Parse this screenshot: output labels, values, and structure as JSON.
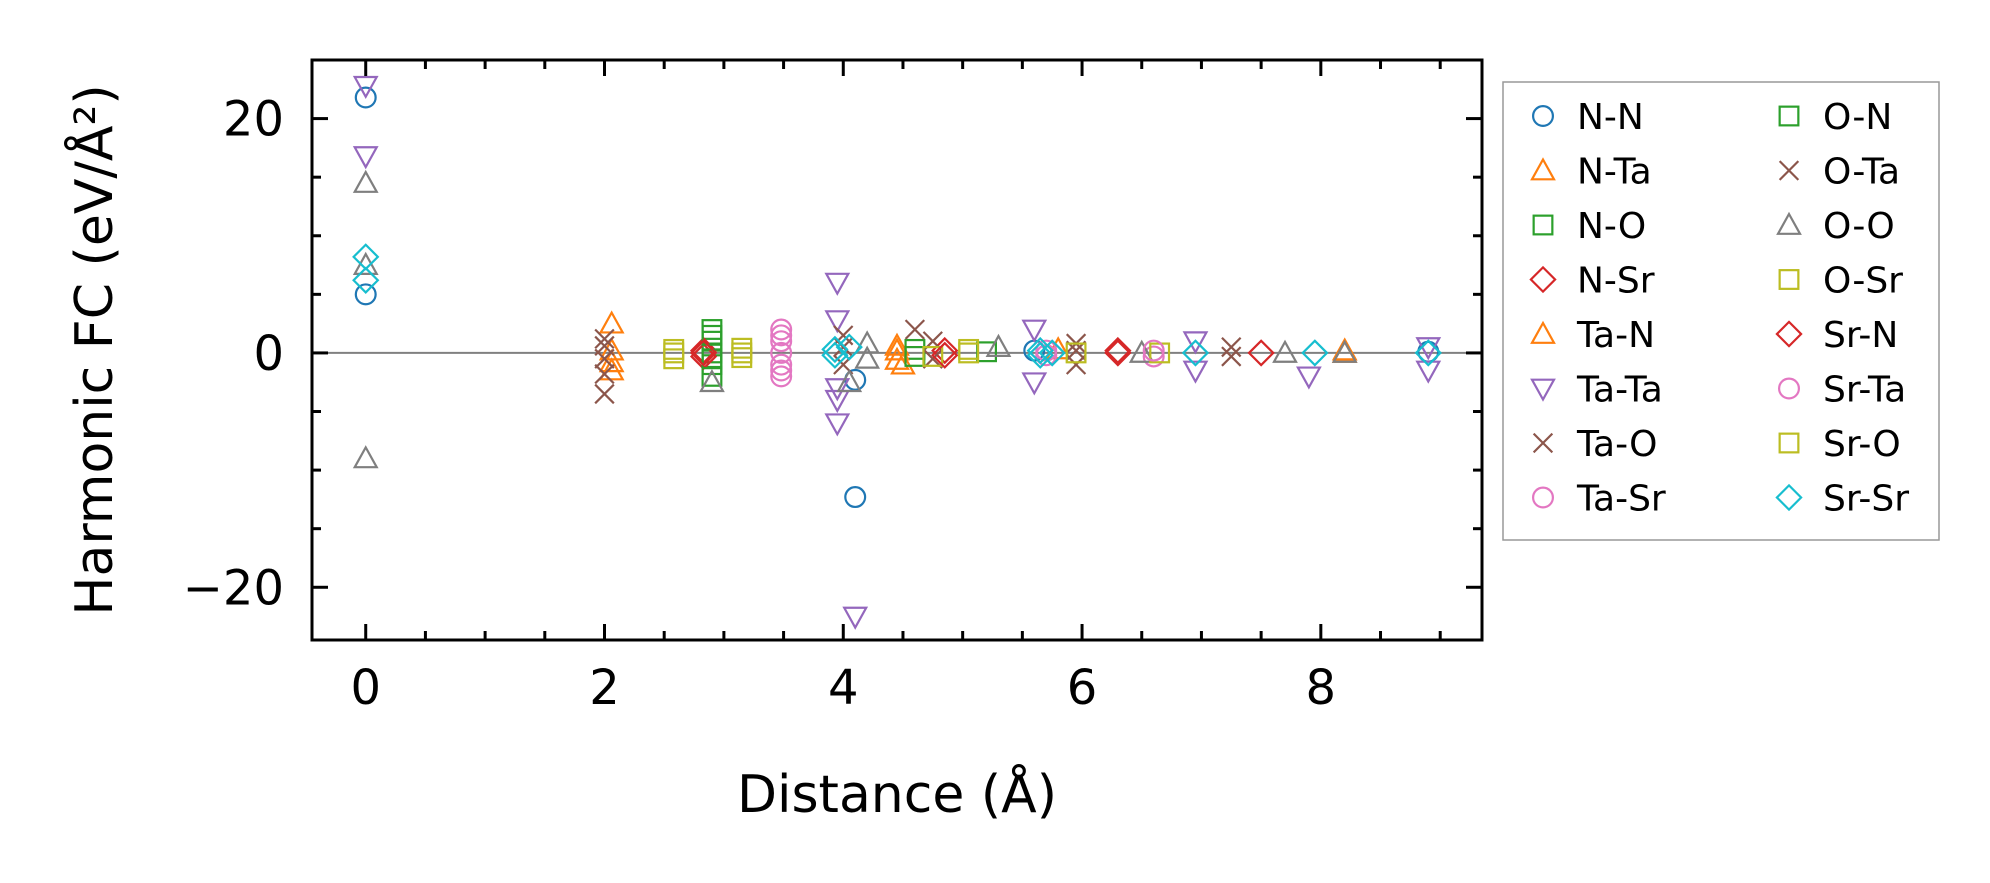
{
  "chart_data": {
    "type": "scatter",
    "xlabel": "Distance (Å)",
    "ylabel": "Harmonic FC (eV/Å²)",
    "xlim": [
      -0.45,
      9.35
    ],
    "ylim": [
      -24.5,
      25
    ],
    "xticks": [
      0,
      2,
      4,
      6,
      8
    ],
    "xtick_labels": [
      "0",
      "2",
      "4",
      "6",
      "8"
    ],
    "yticks": [
      -20,
      0,
      20
    ],
    "ytick_labels": [
      "−20",
      "0",
      "20"
    ],
    "minor_x_step": 0.5,
    "minor_y_step": 5,
    "ticks_direction": "in",
    "zero_line": true,
    "grid": false,
    "legend_position": "outside-right",
    "legend_columns": 2,
    "series": [
      {
        "name": "N-N",
        "marker": "circle",
        "color": "#1f77b4",
        "points": [
          [
            0,
            21.8
          ],
          [
            0,
            5
          ],
          [
            4.1,
            -12.3
          ],
          [
            4.1,
            -2.3
          ],
          [
            5.6,
            0.2
          ],
          [
            8.9,
            0.1
          ]
        ]
      },
      {
        "name": "N-Ta",
        "marker": "triangle-up",
        "color": "#ff7f0e",
        "points": [
          [
            2.06,
            2.5
          ],
          [
            2.06,
            0.2
          ],
          [
            2.06,
            -0.8
          ],
          [
            4.45,
            0.6
          ],
          [
            4.45,
            -0.6
          ],
          [
            4.5,
            -1.0
          ],
          [
            5.8,
            0.3
          ],
          [
            8.2,
            0.2
          ]
        ]
      },
      {
        "name": "N-O",
        "marker": "square",
        "color": "#2ca02c",
        "points": [
          [
            2.9,
            2.0
          ],
          [
            2.9,
            1.0
          ],
          [
            2.9,
            0.0
          ],
          [
            2.9,
            -1.0
          ],
          [
            2.9,
            -2.0
          ],
          [
            4.6,
            0.3
          ],
          [
            5.2,
            0.1
          ]
        ]
      },
      {
        "name": "N-Sr",
        "marker": "diamond",
        "color": "#d62728",
        "points": [
          [
            2.83,
            0.2
          ],
          [
            2.83,
            -0.3
          ],
          [
            4.85,
            0.2
          ],
          [
            6.3,
            0.0
          ]
        ]
      },
      {
        "name": "Ta-N",
        "marker": "triangle-up",
        "color": "#ff7f0e",
        "points": [
          [
            2.06,
            -1.5
          ],
          [
            4.45,
            0.2
          ],
          [
            8.2,
            0.0
          ]
        ]
      },
      {
        "name": "Ta-Ta",
        "marker": "triangle-down",
        "color": "#9467bd",
        "points": [
          [
            0,
            22.8
          ],
          [
            0,
            16.8
          ],
          [
            3.95,
            6.0
          ],
          [
            3.95,
            2.8
          ],
          [
            3.95,
            -3.0
          ],
          [
            3.95,
            -4.0
          ],
          [
            3.95,
            -6.0
          ],
          [
            4.1,
            -22.5
          ],
          [
            5.6,
            2.0
          ],
          [
            5.6,
            -2.5
          ],
          [
            6.95,
            1.0
          ],
          [
            6.95,
            -1.5
          ],
          [
            7.9,
            -2.0
          ],
          [
            8.9,
            0.5
          ],
          [
            8.9,
            -1.5
          ]
        ]
      },
      {
        "name": "Ta-O",
        "marker": "x",
        "color": "#8c564b",
        "points": [
          [
            2.0,
            1.2
          ],
          [
            2.0,
            -0.5
          ],
          [
            2.0,
            -1.8
          ],
          [
            2.0,
            -3.5
          ],
          [
            4.0,
            1.5
          ],
          [
            4.0,
            -1.0
          ],
          [
            4.6,
            2.0
          ],
          [
            4.75,
            1.0
          ],
          [
            5.95,
            0.8
          ],
          [
            5.95,
            -1.0
          ],
          [
            7.25,
            0.5
          ]
        ]
      },
      {
        "name": "Ta-Sr",
        "marker": "circle",
        "color": "#e377c2",
        "points": [
          [
            3.48,
            2.0
          ],
          [
            3.48,
            1.0
          ],
          [
            3.48,
            0.0
          ],
          [
            3.48,
            -1.0
          ],
          [
            3.48,
            -2.0
          ],
          [
            5.7,
            0.2
          ],
          [
            6.6,
            -0.3
          ]
        ]
      },
      {
        "name": "O-N",
        "marker": "square",
        "color": "#2ca02c",
        "points": [
          [
            2.9,
            1.5
          ],
          [
            2.9,
            -0.5
          ],
          [
            4.6,
            -0.3
          ]
        ]
      },
      {
        "name": "O-Ta",
        "marker": "x",
        "color": "#8c564b",
        "points": [
          [
            2.0,
            0.6
          ],
          [
            4.0,
            0.5
          ],
          [
            4.75,
            -0.5
          ],
          [
            5.95,
            0.2
          ],
          [
            7.25,
            -0.3
          ]
        ]
      },
      {
        "name": "O-O",
        "marker": "triangle-up",
        "color": "#7f7f7f",
        "points": [
          [
            0,
            14.5
          ],
          [
            0,
            7.5
          ],
          [
            0,
            -9.0
          ],
          [
            2.9,
            -2.5
          ],
          [
            4.05,
            -2.5
          ],
          [
            4.2,
            0.8
          ],
          [
            4.2,
            -0.5
          ],
          [
            5.3,
            0.5
          ],
          [
            6.5,
            0.0
          ],
          [
            7.7,
            0.0
          ],
          [
            8.2,
            0.0
          ]
        ]
      },
      {
        "name": "O-Sr",
        "marker": "square",
        "color": "#bcbd22",
        "points": [
          [
            2.58,
            0.3
          ],
          [
            2.58,
            -0.5
          ],
          [
            3.15,
            0.4
          ],
          [
            3.15,
            -0.4
          ],
          [
            4.75,
            -0.3
          ],
          [
            5.05,
            0.3
          ],
          [
            6.65,
            0.0
          ]
        ]
      },
      {
        "name": "Sr-N",
        "marker": "diamond",
        "color": "#d62728",
        "points": [
          [
            2.83,
            0.0
          ],
          [
            4.85,
            -0.2
          ],
          [
            6.3,
            0.2
          ],
          [
            7.5,
            0.0
          ]
        ]
      },
      {
        "name": "Sr-Ta",
        "marker": "circle",
        "color": "#e377c2",
        "points": [
          [
            3.48,
            1.5
          ],
          [
            3.48,
            -1.5
          ],
          [
            5.7,
            -0.2
          ],
          [
            6.6,
            0.2
          ]
        ]
      },
      {
        "name": "Sr-O",
        "marker": "square",
        "color": "#bcbd22",
        "points": [
          [
            2.58,
            0.0
          ],
          [
            3.15,
            0.0
          ],
          [
            5.05,
            0.0
          ],
          [
            5.95,
            0.0
          ]
        ]
      },
      {
        "name": "Sr-Sr",
        "marker": "diamond",
        "color": "#17becf",
        "points": [
          [
            0,
            8.2
          ],
          [
            0,
            6.2
          ],
          [
            3.93,
            0.3
          ],
          [
            3.93,
            -0.2
          ],
          [
            4.05,
            0.5
          ],
          [
            5.65,
            0.2
          ],
          [
            5.65,
            -0.2
          ],
          [
            5.75,
            0.0
          ],
          [
            6.95,
            0.0
          ],
          [
            7.95,
            0.0
          ],
          [
            8.9,
            0.0
          ]
        ]
      }
    ]
  }
}
